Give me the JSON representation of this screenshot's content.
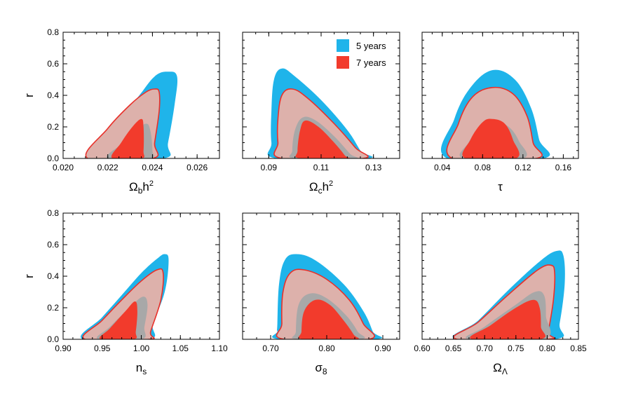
{
  "legend": [
    {
      "label": "5 years",
      "color": "#1fb4ea"
    },
    {
      "label": "7 years",
      "color": "#f23b2c"
    }
  ],
  "colors": {
    "outer_5y": "#1fb4ea",
    "inner_5y": "#a8a8a8",
    "outer_7y_fill": "#ddb1ab",
    "outer_7y_line": "#e8302a",
    "inner_7y": "#f23b2c"
  },
  "chart_data": [
    {
      "type": "contour",
      "ylabel": "r",
      "ylim": [
        0,
        0.8
      ],
      "yticks": [
        "0.0",
        "0.2",
        "0.4",
        "0.6",
        "0.8"
      ],
      "xlabel": {
        "base": "Ω",
        "sub": "b",
        "tail": "h",
        "sup": "2"
      },
      "xlim": [
        0.02,
        0.027
      ],
      "xticks": [
        "0.020",
        "0.022",
        "0.024",
        "0.026"
      ],
      "xtick_values": [
        0.02,
        0.022,
        0.024,
        0.026
      ],
      "contours": {
        "outer_5y": [
          [
            0.0212,
            0
          ],
          [
            0.0222,
            0.2
          ],
          [
            0.0233,
            0.38
          ],
          [
            0.0241,
            0.52
          ],
          [
            0.0247,
            0.55
          ],
          [
            0.0251,
            0.52
          ],
          [
            0.025,
            0.35
          ],
          [
            0.0247,
            0.1
          ],
          [
            0.0245,
            0
          ]
        ],
        "outer_7y": [
          [
            0.0211,
            0
          ],
          [
            0.022,
            0.19
          ],
          [
            0.023,
            0.34
          ],
          [
            0.0237,
            0.42
          ],
          [
            0.0241,
            0.44
          ],
          [
            0.0243,
            0.42
          ],
          [
            0.0243,
            0.3
          ],
          [
            0.0241,
            0.1
          ],
          [
            0.024,
            0
          ]
        ],
        "inner_5y": [
          [
            0.022,
            0
          ],
          [
            0.0226,
            0.09
          ],
          [
            0.0232,
            0.17
          ],
          [
            0.0237,
            0.22
          ],
          [
            0.0239,
            0.18
          ],
          [
            0.024,
            0.05
          ],
          [
            0.0239,
            0
          ]
        ],
        "inner_7y": [
          [
            0.0222,
            0
          ],
          [
            0.0226,
            0.1
          ],
          [
            0.0231,
            0.2
          ],
          [
            0.0235,
            0.25
          ],
          [
            0.0236,
            0.2
          ],
          [
            0.0236,
            0.05
          ],
          [
            0.0235,
            0
          ]
        ]
      }
    },
    {
      "type": "contour",
      "ylabel": "",
      "ylim": [
        0,
        0.8
      ],
      "yticks": [],
      "xlabel": {
        "base": "Ω",
        "sub": "c",
        "tail": "h",
        "sup": "2"
      },
      "xlim": [
        0.08,
        0.14
      ],
      "xticks": [
        "0.09",
        "0.11",
        "0.13"
      ],
      "xtick_values": [
        0.09,
        0.11,
        0.13
      ],
      "contours": {
        "outer_5y": [
          [
            0.091,
            0.3
          ],
          [
            0.092,
            0.5
          ],
          [
            0.095,
            0.57
          ],
          [
            0.1,
            0.52
          ],
          [
            0.11,
            0.37
          ],
          [
            0.12,
            0.18
          ],
          [
            0.125,
            0.05
          ],
          [
            0.1275,
            0
          ],
          [
            0.093,
            0
          ],
          [
            0.091,
            0.1
          ]
        ],
        "outer_7y": [
          [
            0.0935,
            0.25
          ],
          [
            0.095,
            0.4
          ],
          [
            0.099,
            0.44
          ],
          [
            0.105,
            0.38
          ],
          [
            0.115,
            0.22
          ],
          [
            0.123,
            0.07
          ],
          [
            0.126,
            0
          ],
          [
            0.095,
            0
          ],
          [
            0.0935,
            0.1
          ]
        ],
        "inner_5y": [
          [
            0.099,
            0.05
          ],
          [
            0.1,
            0.18
          ],
          [
            0.103,
            0.26
          ],
          [
            0.108,
            0.24
          ],
          [
            0.115,
            0.14
          ],
          [
            0.121,
            0.03
          ],
          [
            0.1225,
            0
          ],
          [
            0.1,
            0
          ]
        ],
        "inner_7y": [
          [
            0.101,
            0.05
          ],
          [
            0.102,
            0.18
          ],
          [
            0.104,
            0.24
          ],
          [
            0.109,
            0.2
          ],
          [
            0.115,
            0.1
          ],
          [
            0.119,
            0.02
          ],
          [
            0.1195,
            0
          ],
          [
            0.102,
            0
          ]
        ]
      }
    },
    {
      "type": "contour",
      "ylabel": "",
      "ylim": [
        0,
        0.8
      ],
      "yticks": [],
      "xlabel": {
        "base": "τ",
        "sub": "",
        "tail": "",
        "sup": ""
      },
      "xlim": [
        0.02,
        0.175
      ],
      "xticks": [
        "0.04",
        "0.08",
        "0.12",
        "0.16"
      ],
      "xtick_values": [
        0.04,
        0.08,
        0.12,
        0.16
      ],
      "contours": {
        "outer_5y": [
          [
            0.045,
            0
          ],
          [
            0.052,
            0.25
          ],
          [
            0.068,
            0.45
          ],
          [
            0.09,
            0.56
          ],
          [
            0.112,
            0.5
          ],
          [
            0.128,
            0.32
          ],
          [
            0.136,
            0.12
          ],
          [
            0.14,
            0
          ]
        ],
        "outer_7y": [
          [
            0.05,
            0
          ],
          [
            0.056,
            0.22
          ],
          [
            0.07,
            0.39
          ],
          [
            0.09,
            0.45
          ],
          [
            0.11,
            0.41
          ],
          [
            0.124,
            0.27
          ],
          [
            0.13,
            0.1
          ],
          [
            0.133,
            0
          ]
        ],
        "inner_5y": [
          [
            0.061,
            0
          ],
          [
            0.066,
            0.1
          ],
          [
            0.078,
            0.2
          ],
          [
            0.092,
            0.23
          ],
          [
            0.106,
            0.2
          ],
          [
            0.116,
            0.11
          ],
          [
            0.12,
            0
          ]
        ],
        "inner_7y": [
          [
            0.063,
            0
          ],
          [
            0.068,
            0.12
          ],
          [
            0.08,
            0.23
          ],
          [
            0.09,
            0.25
          ],
          [
            0.102,
            0.22
          ],
          [
            0.11,
            0.12
          ],
          [
            0.113,
            0
          ]
        ]
      }
    },
    {
      "type": "contour",
      "ylabel": "r",
      "ylim": [
        0,
        0.8
      ],
      "yticks": [
        "0.0",
        "0.2",
        "0.4",
        "0.6",
        "0.8"
      ],
      "xlabel": {
        "base": "n",
        "sub": "s",
        "tail": "",
        "sup": ""
      },
      "xlim": [
        0.9,
        1.1
      ],
      "xticks": [
        "0.90",
        "0.95",
        "1.00",
        "1.05",
        "1.10"
      ],
      "xtick_values": [
        0.9,
        0.95,
        1.0,
        1.05,
        1.1
      ],
      "contours": {
        "outer_5y": [
          [
            0.925,
            0
          ],
          [
            0.95,
            0.14
          ],
          [
            0.975,
            0.28
          ],
          [
            1.0,
            0.42
          ],
          [
            1.02,
            0.51
          ],
          [
            1.03,
            0.54
          ],
          [
            1.035,
            0.5
          ],
          [
            1.03,
            0.3
          ],
          [
            1.015,
            0.1
          ],
          [
            1.01,
            0
          ]
        ],
        "outer_7y": [
          [
            0.928,
            0
          ],
          [
            0.95,
            0.12
          ],
          [
            0.975,
            0.25
          ],
          [
            1.0,
            0.37
          ],
          [
            1.02,
            0.44
          ],
          [
            1.028,
            0.42
          ],
          [
            1.025,
            0.25
          ],
          [
            1.012,
            0.05
          ],
          [
            1.01,
            0
          ]
        ],
        "inner_5y": [
          [
            0.945,
            0
          ],
          [
            0.96,
            0.08
          ],
          [
            0.985,
            0.2
          ],
          [
            1.002,
            0.27
          ],
          [
            1.008,
            0.22
          ],
          [
            1.004,
            0.08
          ],
          [
            1.0,
            0
          ]
        ],
        "inner_7y": [
          [
            0.948,
            0
          ],
          [
            0.96,
            0.07
          ],
          [
            0.98,
            0.18
          ],
          [
            0.992,
            0.24
          ],
          [
            0.995,
            0.18
          ],
          [
            0.993,
            0.05
          ],
          [
            0.99,
            0
          ]
        ]
      }
    },
    {
      "type": "contour",
      "ylabel": "",
      "ylim": [
        0,
        0.8
      ],
      "yticks": [],
      "xlabel": {
        "base": "σ",
        "sub": "8",
        "tail": "",
        "sup": ""
      },
      "xlim": [
        0.65,
        0.93
      ],
      "xticks": [
        "0.70",
        "0.80",
        "0.90"
      ],
      "xtick_values": [
        0.7,
        0.8,
        0.9
      ],
      "contours": {
        "outer_5y": [
          [
            0.712,
            0.1
          ],
          [
            0.715,
            0.35
          ],
          [
            0.725,
            0.5
          ],
          [
            0.745,
            0.54
          ],
          [
            0.78,
            0.5
          ],
          [
            0.83,
            0.35
          ],
          [
            0.865,
            0.18
          ],
          [
            0.882,
            0.05
          ],
          [
            0.886,
            0
          ],
          [
            0.718,
            0
          ],
          [
            0.712,
            0.05
          ]
        ],
        "outer_7y": [
          [
            0.72,
            0.1
          ],
          [
            0.722,
            0.3
          ],
          [
            0.735,
            0.42
          ],
          [
            0.76,
            0.44
          ],
          [
            0.8,
            0.38
          ],
          [
            0.84,
            0.25
          ],
          [
            0.865,
            0.1
          ],
          [
            0.875,
            0
          ],
          [
            0.724,
            0
          ]
        ],
        "inner_5y": [
          [
            0.745,
            0.05
          ],
          [
            0.75,
            0.22
          ],
          [
            0.77,
            0.29
          ],
          [
            0.8,
            0.26
          ],
          [
            0.835,
            0.15
          ],
          [
            0.855,
            0.05
          ],
          [
            0.86,
            0
          ],
          [
            0.748,
            0
          ]
        ],
        "inner_7y": [
          [
            0.755,
            0.05
          ],
          [
            0.76,
            0.18
          ],
          [
            0.78,
            0.25
          ],
          [
            0.805,
            0.22
          ],
          [
            0.83,
            0.12
          ],
          [
            0.848,
            0.03
          ],
          [
            0.85,
            0
          ],
          [
            0.758,
            0
          ]
        ]
      }
    },
    {
      "type": "contour",
      "ylabel": "",
      "ylim": [
        0,
        0.8
      ],
      "yticks": [],
      "xlabel": {
        "base": "Ω",
        "sub": "Λ",
        "tail": "",
        "sup": ""
      },
      "xlim": [
        0.6,
        0.85
      ],
      "xticks": [
        "0.60",
        "0.65",
        "0.70",
        "0.75",
        "0.80",
        "0.85"
      ],
      "xtick_values": [
        0.6,
        0.65,
        0.7,
        0.75,
        0.8,
        0.85
      ],
      "contours": {
        "outer_5y": [
          [
            0.655,
            0
          ],
          [
            0.69,
            0.12
          ],
          [
            0.74,
            0.32
          ],
          [
            0.79,
            0.5
          ],
          [
            0.815,
            0.56
          ],
          [
            0.826,
            0.53
          ],
          [
            0.828,
            0.35
          ],
          [
            0.82,
            0.1
          ],
          [
            0.812,
            0
          ]
        ],
        "outer_7y": [
          [
            0.656,
            0
          ],
          [
            0.69,
            0.11
          ],
          [
            0.74,
            0.29
          ],
          [
            0.785,
            0.44
          ],
          [
            0.806,
            0.47
          ],
          [
            0.812,
            0.42
          ],
          [
            0.81,
            0.25
          ],
          [
            0.802,
            0.05
          ],
          [
            0.8,
            0
          ]
        ],
        "inner_5y": [
          [
            0.675,
            0
          ],
          [
            0.7,
            0.08
          ],
          [
            0.75,
            0.22
          ],
          [
            0.78,
            0.3
          ],
          [
            0.795,
            0.28
          ],
          [
            0.798,
            0.15
          ],
          [
            0.795,
            0
          ]
        ],
        "inner_7y": [
          [
            0.68,
            0
          ],
          [
            0.71,
            0.09
          ],
          [
            0.75,
            0.2
          ],
          [
            0.778,
            0.25
          ],
          [
            0.788,
            0.2
          ],
          [
            0.79,
            0.08
          ],
          [
            0.788,
            0
          ]
        ]
      }
    }
  ]
}
